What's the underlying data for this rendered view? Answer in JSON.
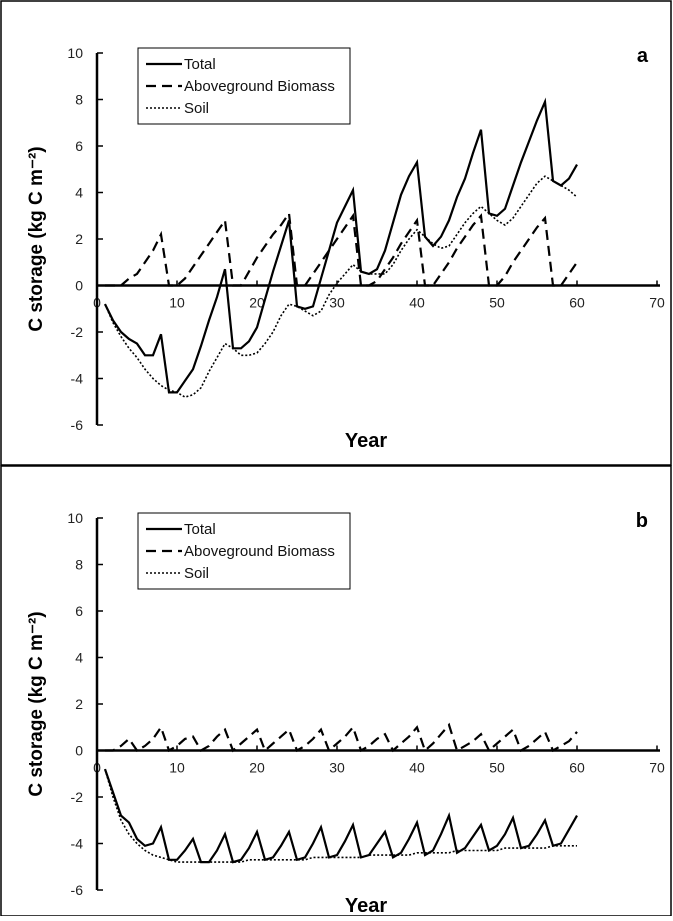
{
  "chart_data": [
    {
      "type": "line",
      "panel_label": "a",
      "xlabel": "Year",
      "ylabel": "C storage (kg C m⁻²)",
      "xlim": [
        0,
        70
      ],
      "xticks": [
        0,
        10,
        20,
        30,
        40,
        50,
        60,
        70
      ],
      "ylim": [
        -6,
        10
      ],
      "yticks": [
        -6,
        -4,
        -2,
        0,
        2,
        4,
        6,
        8,
        10
      ],
      "grid": false,
      "legend": "upper left",
      "x": [
        1,
        2,
        3,
        4,
        5,
        6,
        7,
        8,
        9,
        10,
        11,
        12,
        13,
        14,
        15,
        16,
        17,
        18,
        19,
        20,
        21,
        22,
        23,
        24,
        25,
        26,
        27,
        28,
        29,
        30,
        31,
        32,
        33,
        34,
        35,
        36,
        37,
        38,
        39,
        40,
        41,
        42,
        43,
        44,
        45,
        46,
        47,
        48,
        49,
        50,
        51,
        52,
        53,
        54,
        55,
        56,
        57,
        58,
        59,
        60
      ],
      "series": [
        {
          "name": "Total",
          "color": "#000000",
          "line_style": "solid",
          "values": [
            -0.8,
            -1.5,
            -2.0,
            -2.3,
            -2.5,
            -3.0,
            -3.0,
            -2.1,
            -4.6,
            -4.6,
            -4.1,
            -3.6,
            -2.6,
            -1.5,
            -0.5,
            0.7,
            -2.7,
            -2.7,
            -2.4,
            -1.8,
            -0.6,
            0.6,
            1.7,
            2.8,
            -0.9,
            -1.0,
            -0.9,
            0.3,
            1.5,
            2.7,
            3.4,
            4.1,
            0.6,
            0.5,
            0.7,
            1.5,
            2.7,
            3.9,
            4.7,
            5.3,
            2.1,
            1.7,
            2.1,
            2.8,
            3.8,
            4.6,
            5.7,
            6.7,
            3.1,
            3.0,
            3.3,
            4.3,
            5.3,
            6.2,
            7.1,
            7.9,
            4.5,
            4.3,
            4.6,
            5.2
          ]
        },
        {
          "name": "Aboveground Biomass",
          "color": "#000000",
          "line_style": "dashed",
          "values": [
            0,
            0,
            0,
            0.3,
            0.5,
            1.0,
            1.5,
            2.2,
            0,
            0,
            0.3,
            0.8,
            1.3,
            1.8,
            2.3,
            2.8,
            0,
            0,
            0.6,
            1.2,
            1.7,
            2.2,
            2.6,
            3.1,
            0,
            0,
            0.5,
            1.0,
            1.5,
            2.0,
            2.5,
            3.0,
            0,
            0,
            0.2,
            0.7,
            1.2,
            1.8,
            2.3,
            2.8,
            0,
            0,
            0.5,
            1.0,
            1.6,
            2.1,
            2.6,
            3.0,
            0,
            0,
            0.4,
            1.0,
            1.5,
            2.0,
            2.5,
            2.9,
            0,
            0,
            0.5,
            1.0
          ]
        },
        {
          "name": "Soil",
          "color": "#000000",
          "line_style": "dotted",
          "values": [
            -0.8,
            -1.6,
            -2.2,
            -2.7,
            -3.1,
            -3.6,
            -4.0,
            -4.3,
            -4.5,
            -4.6,
            -4.8,
            -4.7,
            -4.4,
            -3.7,
            -3.1,
            -2.5,
            -2.7,
            -3.0,
            -3.0,
            -2.9,
            -2.5,
            -2.0,
            -1.3,
            -0.8,
            -0.9,
            -1.1,
            -1.3,
            -1.1,
            -0.4,
            0.1,
            0.5,
            0.9,
            0.6,
            0.5,
            0.5,
            0.5,
            0.9,
            1.5,
            2.0,
            2.4,
            2.1,
            1.8,
            1.6,
            1.7,
            2.2,
            2.7,
            3.1,
            3.4,
            3.1,
            2.8,
            2.6,
            2.9,
            3.4,
            3.9,
            4.4,
            4.7,
            4.5,
            4.3,
            4.1,
            3.8
          ]
        }
      ]
    },
    {
      "type": "line",
      "panel_label": "b",
      "xlabel": "Year",
      "ylabel": "C storage (kg C m⁻²)",
      "xlim": [
        0,
        70
      ],
      "xticks": [
        0,
        10,
        20,
        30,
        40,
        50,
        60,
        70
      ],
      "ylim": [
        -6,
        10
      ],
      "yticks": [
        -6,
        -4,
        -2,
        0,
        2,
        4,
        6,
        8,
        10
      ],
      "grid": false,
      "legend": "upper left",
      "x": [
        1,
        2,
        3,
        4,
        5,
        6,
        7,
        8,
        9,
        10,
        11,
        12,
        13,
        14,
        15,
        16,
        17,
        18,
        19,
        20,
        21,
        22,
        23,
        24,
        25,
        26,
        27,
        28,
        29,
        30,
        31,
        32,
        33,
        34,
        35,
        36,
        37,
        38,
        39,
        40,
        41,
        42,
        43,
        44,
        45,
        46,
        47,
        48,
        49,
        50,
        51,
        52,
        53,
        54,
        55,
        56,
        57,
        58,
        59,
        60
      ],
      "series": [
        {
          "name": "Total",
          "color": "#000000",
          "line_style": "solid",
          "values": [
            -0.8,
            -1.8,
            -2.8,
            -3.1,
            -3.8,
            -4.1,
            -4.0,
            -3.3,
            -4.7,
            -4.7,
            -4.3,
            -3.8,
            -4.8,
            -4.8,
            -4.3,
            -3.6,
            -4.8,
            -4.7,
            -4.2,
            -3.5,
            -4.7,
            -4.6,
            -4.1,
            -3.5,
            -4.7,
            -4.6,
            -4.0,
            -3.3,
            -4.6,
            -4.5,
            -3.9,
            -3.2,
            -4.6,
            -4.5,
            -4.0,
            -3.5,
            -4.6,
            -4.4,
            -3.8,
            -3.1,
            -4.5,
            -4.3,
            -3.6,
            -2.8,
            -4.4,
            -4.2,
            -3.7,
            -3.2,
            -4.3,
            -4.1,
            -3.6,
            -2.9,
            -4.2,
            -4.1,
            -3.6,
            -3.0,
            -4.1,
            -4.0,
            -3.4,
            -2.8
          ]
        },
        {
          "name": "Aboveground Biomass",
          "color": "#000000",
          "line_style": "dashed",
          "values": [
            0,
            0,
            0.2,
            0.5,
            0,
            0.2,
            0.5,
            1.0,
            0,
            0.2,
            0.5,
            0.6,
            0,
            0.2,
            0.6,
            0.9,
            0,
            0.3,
            0.6,
            0.9,
            0,
            0.3,
            0.6,
            0.9,
            0,
            0.2,
            0.5,
            0.9,
            0,
            0.3,
            0.6,
            1.0,
            0,
            0.2,
            0.5,
            0.7,
            0,
            0.3,
            0.6,
            1.0,
            0,
            0.3,
            0.7,
            1.1,
            0,
            0.2,
            0.4,
            0.7,
            0,
            0.3,
            0.6,
            0.9,
            0,
            0.2,
            0.5,
            0.8,
            0,
            0.2,
            0.4,
            0.8
          ]
        },
        {
          "name": "Soil",
          "color": "#000000",
          "line_style": "dotted",
          "values": [
            -0.8,
            -2.0,
            -3.0,
            -3.6,
            -4.0,
            -4.3,
            -4.5,
            -4.6,
            -4.7,
            -4.8,
            -4.8,
            -4.8,
            -4.8,
            -4.8,
            -4.8,
            -4.8,
            -4.8,
            -4.8,
            -4.7,
            -4.7,
            -4.7,
            -4.7,
            -4.7,
            -4.7,
            -4.7,
            -4.7,
            -4.6,
            -4.6,
            -4.6,
            -4.6,
            -4.6,
            -4.6,
            -4.6,
            -4.5,
            -4.5,
            -4.5,
            -4.5,
            -4.5,
            -4.5,
            -4.4,
            -4.4,
            -4.4,
            -4.4,
            -4.4,
            -4.3,
            -4.3,
            -4.3,
            -4.3,
            -4.3,
            -4.3,
            -4.2,
            -4.2,
            -4.2,
            -4.2,
            -4.2,
            -4.2,
            -4.1,
            -4.1,
            -4.1,
            -4.1
          ]
        }
      ]
    }
  ]
}
